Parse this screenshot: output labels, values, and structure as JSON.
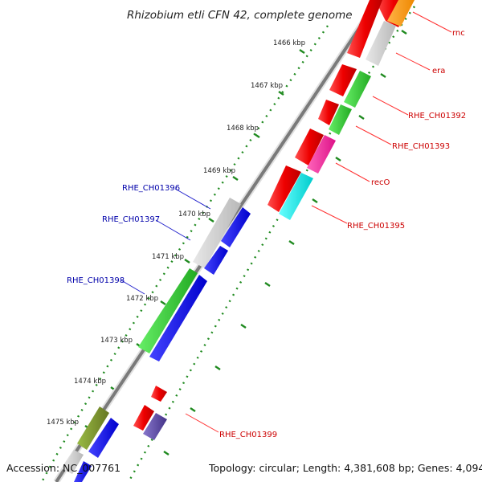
{
  "title": "Rhizobium etli CFN 42, complete genome",
  "footer": {
    "accession": "Accession: NC_007761",
    "summary": "Topology: circular; Length: 4,381,608 bp; Genes: 4,094"
  },
  "colors": {
    "backbone": "#7a7a7a",
    "tick": "#1f8a1f",
    "forward_label": "#cc0000",
    "reverse_label": "#0000aa"
  },
  "ticks": [
    "1466 kbp",
    "1467 kbp",
    "1468 kbp",
    "1469 kbp",
    "1470 kbp",
    "1471 kbp",
    "1472 kbp",
    "1473 kbp",
    "1474 kbp",
    "1475 kbp"
  ],
  "forward_genes": [
    {
      "name": "rnc",
      "color": "#ff9900"
    },
    {
      "name": "era",
      "color": "#c8c8c8"
    },
    {
      "name": "RHE_CH01392",
      "color": "#33cc33"
    },
    {
      "name": "RHE_CH01393",
      "color": "#33cc33"
    },
    {
      "name": "recO",
      "color": "#ff3399"
    },
    {
      "name": "RHE_CH01395",
      "color": "#00e5e5"
    },
    {
      "name": "RHE_CH01399",
      "color": "#6655aa"
    }
  ],
  "reverse_genes": [
    {
      "name": "RHE_CH01396",
      "color": "#c8c8c8"
    },
    {
      "name": "RHE_CH01397",
      "color": "#1111dd"
    },
    {
      "name": "RHE_CH01398",
      "color": "#33cc33"
    }
  ]
}
